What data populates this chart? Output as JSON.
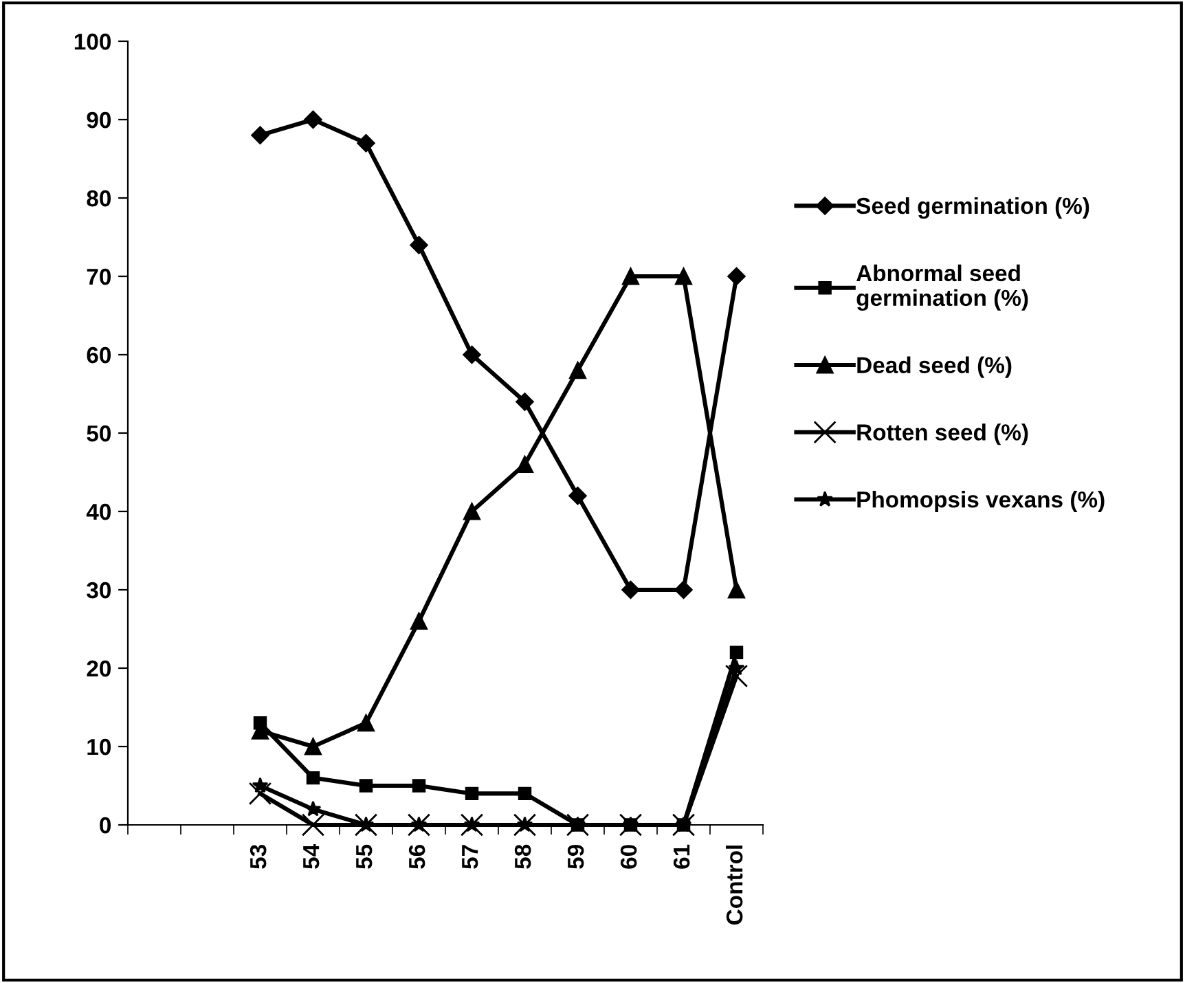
{
  "chart_data": {
    "type": "line",
    "categories": [
      null,
      null,
      "53",
      "54",
      "55",
      "56",
      "57",
      "58",
      "59",
      "60",
      "61",
      "Control"
    ],
    "series": [
      {
        "name": "Seed germination (%)",
        "color": "#000000",
        "marker": "diamond",
        "values": [
          null,
          null,
          88,
          90,
          87,
          74,
          60,
          54,
          42,
          30,
          30,
          70
        ]
      },
      {
        "name": "Abnormal seed\ngermination (%)",
        "color": "#000000",
        "marker": "square",
        "values": [
          null,
          null,
          13,
          6,
          5,
          5,
          4,
          4,
          0,
          0,
          0,
          22
        ]
      },
      {
        "name": "Dead seed (%)",
        "color": "#000000",
        "marker": "triangle",
        "values": [
          null,
          null,
          12,
          10,
          13,
          26,
          40,
          46,
          58,
          70,
          70,
          30
        ]
      },
      {
        "name": "Rotten seed (%)",
        "color": "#000000",
        "marker": "cross",
        "values": [
          null,
          null,
          4,
          0,
          0,
          0,
          0,
          0,
          0,
          0,
          0,
          19
        ]
      },
      {
        "name": "Phomopsis vexans (%)",
        "color": "#000000",
        "marker": "star",
        "values": [
          null,
          null,
          5,
          2,
          0,
          0,
          0,
          0,
          0,
          0,
          0,
          20
        ]
      }
    ],
    "ylim": [
      0,
      100
    ],
    "yticks": [
      0,
      10,
      20,
      30,
      40,
      50,
      60,
      70,
      80,
      90,
      100
    ],
    "grid": false,
    "legend": "right",
    "line_style": "solid"
  }
}
